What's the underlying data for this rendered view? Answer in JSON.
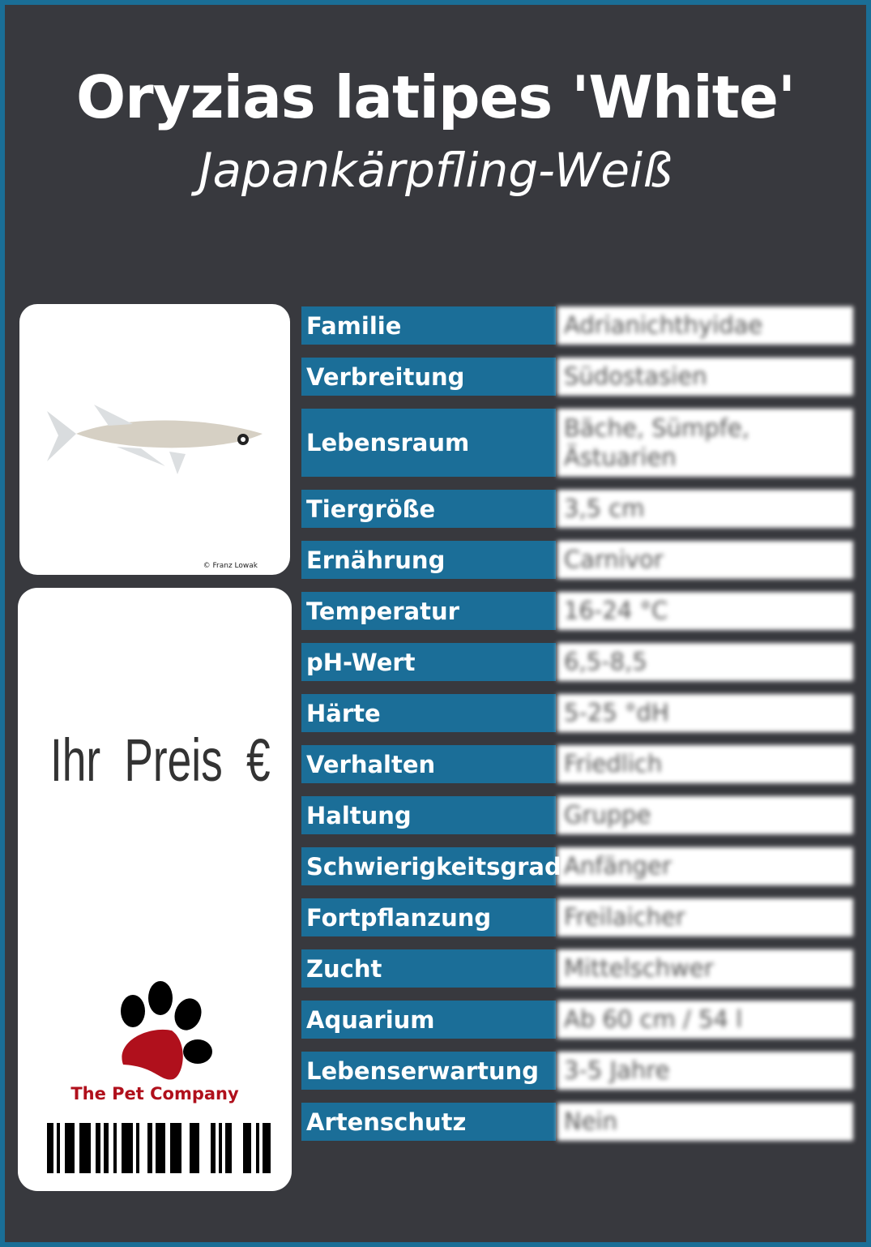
{
  "title": "Oryzias latipes 'White'",
  "subtitle": "Japankärpfling-Weiß",
  "photo": {
    "credit": "© Franz Lowak"
  },
  "price": {
    "label": "Ihr Preis €"
  },
  "brand": {
    "name": "The Pet Company",
    "colors": {
      "pad": "#b0101c",
      "toes": "#000000"
    }
  },
  "colors": {
    "background": "#38393e",
    "border": "#1a6e96",
    "label_bg": "#1b6e98"
  },
  "rows": [
    {
      "label": "Familie",
      "value": "Adrianichthyidae"
    },
    {
      "label": "Verbreitung",
      "value": "Südostasien"
    },
    {
      "label": "Lebensraum",
      "value": "Bäche, Sümpfe, Ästuarien"
    },
    {
      "label": "Tiergröße",
      "value": "3,5 cm"
    },
    {
      "label": "Ernährung",
      "value": "Carnivor"
    },
    {
      "label": "Temperatur",
      "value": "16-24 °C"
    },
    {
      "label": "pH-Wert",
      "value": "6,5-8,5"
    },
    {
      "label": "Härte",
      "value": "5-25 °dH"
    },
    {
      "label": "Verhalten",
      "value": "Friedlich"
    },
    {
      "label": "Haltung",
      "value": "Gruppe"
    },
    {
      "label": "Schwierigkeitsgrad",
      "value": "Anfänger"
    },
    {
      "label": "Fortpflanzung",
      "value": "Freilaicher"
    },
    {
      "label": "Zucht",
      "value": "Mittelschwer"
    },
    {
      "label": "Aquarium",
      "value": "Ab 60 cm / 54 l"
    },
    {
      "label": "Lebenserwartung",
      "value": "3-5 Jahre"
    },
    {
      "label": "Artenschutz",
      "value": "Nein"
    }
  ]
}
